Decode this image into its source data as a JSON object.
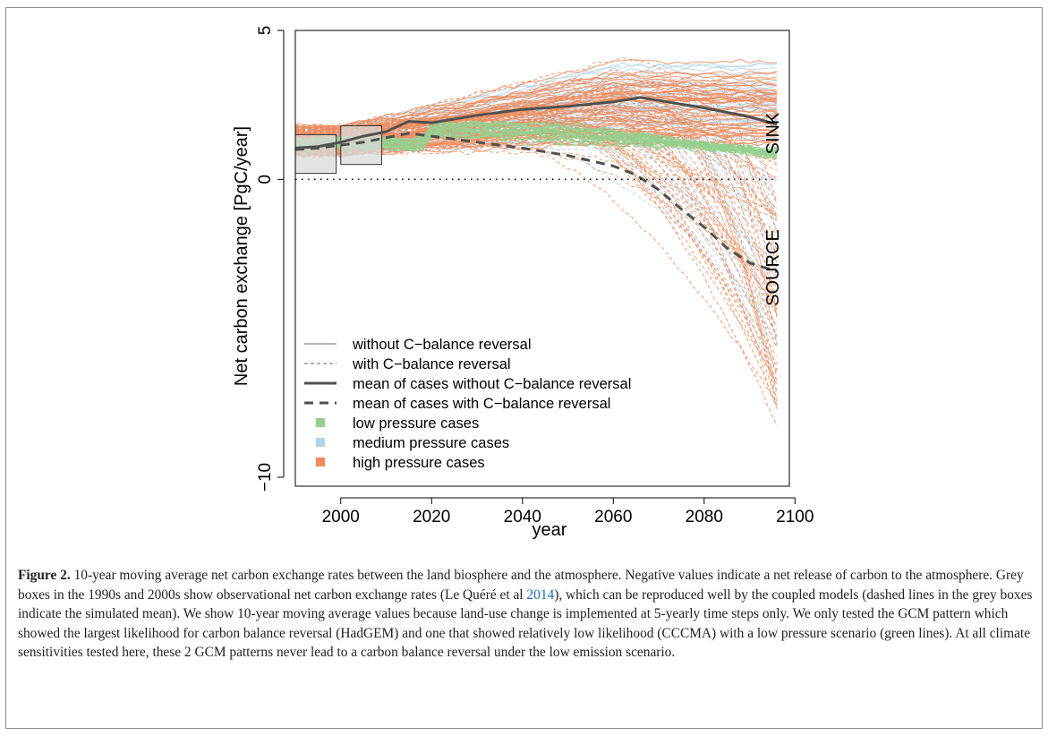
{
  "figure": {
    "label": "Figure 2.",
    "caption_parts": {
      "text_1": " 10-year moving average net carbon exchange rates between the land biosphere and the atmosphere. Negative values indicate a net release of carbon to the atmosphere. Grey boxes in the 1990s and 2000s show observational net carbon exchange rates (Le Quéré et al ",
      "citation_year": "2014",
      "text_2": "), which can be reproduced well by the coupled models (dashed lines in the grey boxes indicate the simulated mean). We show 10-year moving average values because land-use change is implemented at 5-yearly time steps only. We only tested the GCM pattern which showed the largest likelihood for carbon balance reversal (HadGEM) and one that showed relatively low likelihood (CCCMA) with a low pressure scenario (green lines). At all climate sensitivities tested here, these 2 GCM patterns never lead to a carbon balance reversal under the low emission scenario."
    }
  },
  "chart_data": {
    "type": "line",
    "xlabel": "year",
    "ylabel": "Net carbon exchange [PgC/year]",
    "xlim": [
      1990,
      2096
    ],
    "ylim": [
      -10.3,
      5.0
    ],
    "x_ticks": [
      "2000",
      "2020",
      "2040",
      "2060",
      "2080",
      "2100"
    ],
    "y_ticks": [
      "5",
      "0",
      "−10"
    ],
    "zero_line": "dotted",
    "annotations": {
      "sink": "SINK",
      "source": "SOURCE"
    },
    "legend": {
      "position": "bottom-left",
      "entries": [
        {
          "label": "without C−balance reversal",
          "style": "thin solid grey"
        },
        {
          "label": "with C−balance reversal",
          "style": "thin dashed grey"
        },
        {
          "label": "mean of cases without C−balance reversal",
          "style": "thick solid dark grey"
        },
        {
          "label": "mean of cases with C−balance reversal",
          "style": "thick dashed dark grey"
        },
        {
          "label": "low pressure cases",
          "color": "#94d18f"
        },
        {
          "label": "medium pressure cases",
          "color": "#b3d3ea"
        },
        {
          "label": "high pressure cases",
          "color": "#f08b5d"
        }
      ]
    },
    "colors": {
      "low": "#94d18f",
      "medium": "#b3d3ea",
      "high": "#f08b5d",
      "mean": "#505050",
      "box": "#d9d9d9"
    },
    "observation_boxes": [
      {
        "decade": "1990s",
        "x": [
          1990,
          1999
        ],
        "y": [
          0.2,
          1.5
        ]
      },
      {
        "decade": "2000s",
        "x": [
          2000,
          2009
        ],
        "y": [
          0.5,
          1.8
        ]
      }
    ],
    "series_mean": [
      {
        "name": "mean of cases without C−balance reversal",
        "x": [
          1990,
          1995,
          2000,
          2005,
          2010,
          2015,
          2020,
          2030,
          2040,
          2050,
          2060,
          2066,
          2070,
          2080,
          2090,
          2096
        ],
        "y": [
          1.05,
          1.1,
          1.25,
          1.45,
          1.6,
          1.95,
          1.9,
          2.15,
          2.35,
          2.45,
          2.6,
          2.75,
          2.65,
          2.4,
          2.1,
          1.85
        ]
      },
      {
        "name": "mean of cases with C−balance reversal",
        "x": [
          1990,
          1995,
          2000,
          2005,
          2010,
          2015,
          2020,
          2030,
          2040,
          2050,
          2060,
          2065,
          2070,
          2075,
          2080,
          2085,
          2090,
          2096
        ],
        "y": [
          1.0,
          1.05,
          1.15,
          1.25,
          1.4,
          1.55,
          1.45,
          1.25,
          1.05,
          0.8,
          0.45,
          0.15,
          -0.35,
          -1.0,
          -1.6,
          -2.3,
          -2.8,
          -3.1
        ]
      }
    ]
  }
}
